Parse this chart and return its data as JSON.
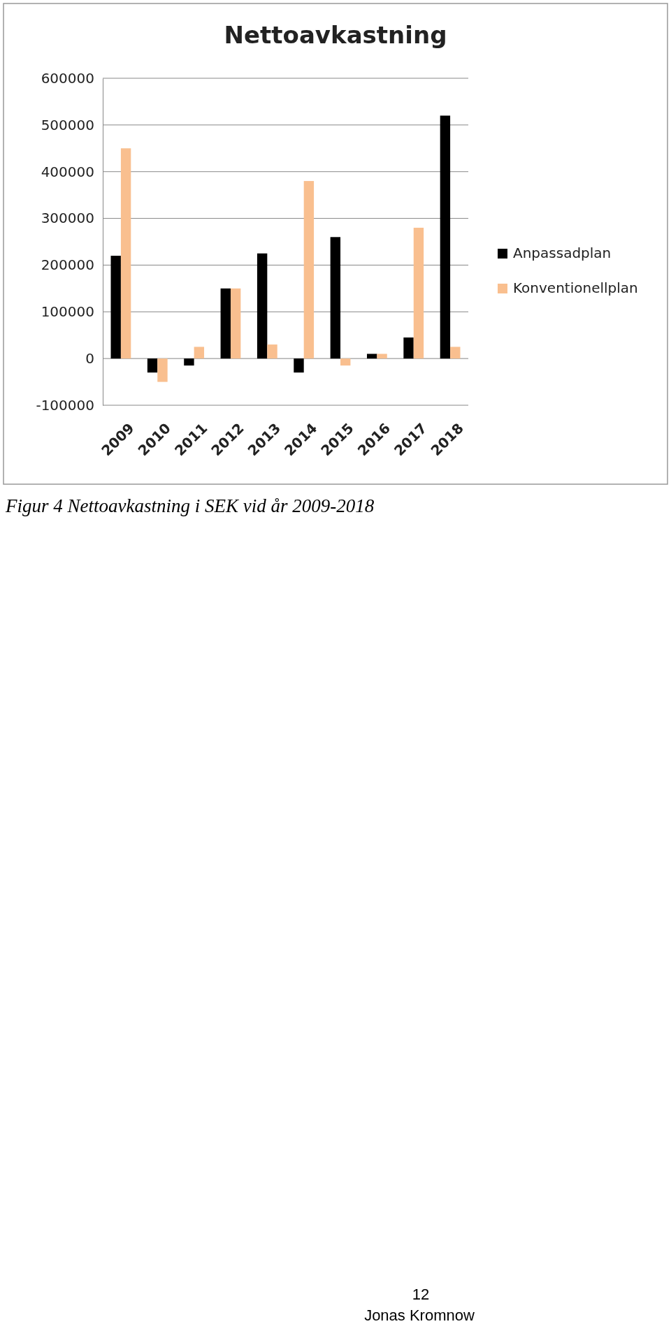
{
  "chart_data": {
    "type": "bar",
    "title": "Nettoavkastning",
    "categories": [
      "2009",
      "2010",
      "2011",
      "2012",
      "2013",
      "2014",
      "2015",
      "2016",
      "2017",
      "2018"
    ],
    "series": [
      {
        "name": "Anpassadplan",
        "color": "#000000",
        "values": [
          220000,
          -30000,
          -15000,
          150000,
          225000,
          -30000,
          260000,
          10000,
          45000,
          520000
        ]
      },
      {
        "name": "Konventionellplan",
        "color": "#f9bf8f",
        "values": [
          450000,
          -50000,
          25000,
          150000,
          30000,
          380000,
          -15000,
          10000,
          280000,
          25000
        ]
      }
    ],
    "ylim": [
      -100000,
      600000
    ],
    "yticks": [
      -100000,
      0,
      100000,
      200000,
      300000,
      400000,
      500000,
      600000
    ],
    "grid": "y",
    "legend": "right",
    "annotations": [
      "Figur 4 Nettoavkastning i SEK vid år 2009-2018",
      "12",
      "Jonas Kromnow"
    ]
  }
}
